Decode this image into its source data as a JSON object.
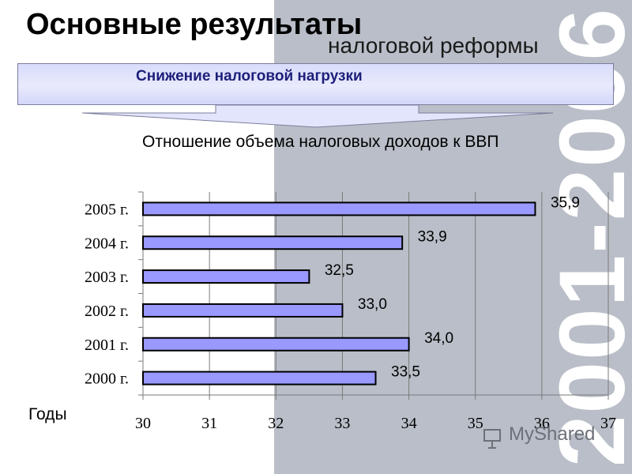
{
  "header": {
    "title": "Основные результаты",
    "subtitle": "налоговой реформы"
  },
  "banner": {
    "text": "Снижение налоговой нагрузки"
  },
  "watermark": {
    "years": "2001-2006"
  },
  "branding": {
    "name": "MyShared",
    "icon": "presentation-board-icon"
  },
  "colors": {
    "bar_fill": "#9999ff",
    "bar_stroke": "#000000",
    "banner_text": "#1d1f7a",
    "right_panel": "#b9bec8"
  },
  "chart_data": {
    "type": "bar",
    "orientation": "horizontal",
    "title": "Отношение объема налоговых доходов к ВВП",
    "xlabel": "Годы",
    "ylabel": "",
    "categories": [
      "2005 г.",
      "2004 г.",
      "2003 г.",
      "2002 г.",
      "2001 г.",
      "2000 г."
    ],
    "values": [
      35.9,
      33.9,
      32.5,
      33.0,
      34.0,
      33.5
    ],
    "value_labels": [
      "35,9",
      "33,9",
      "32,5",
      "33,0",
      "34,0",
      "33,5"
    ],
    "xlim": [
      30,
      37
    ],
    "xticks": [
      "30",
      "31",
      "32",
      "33",
      "34",
      "35",
      "36",
      "37"
    ],
    "grid": true,
    "legend": "none"
  }
}
